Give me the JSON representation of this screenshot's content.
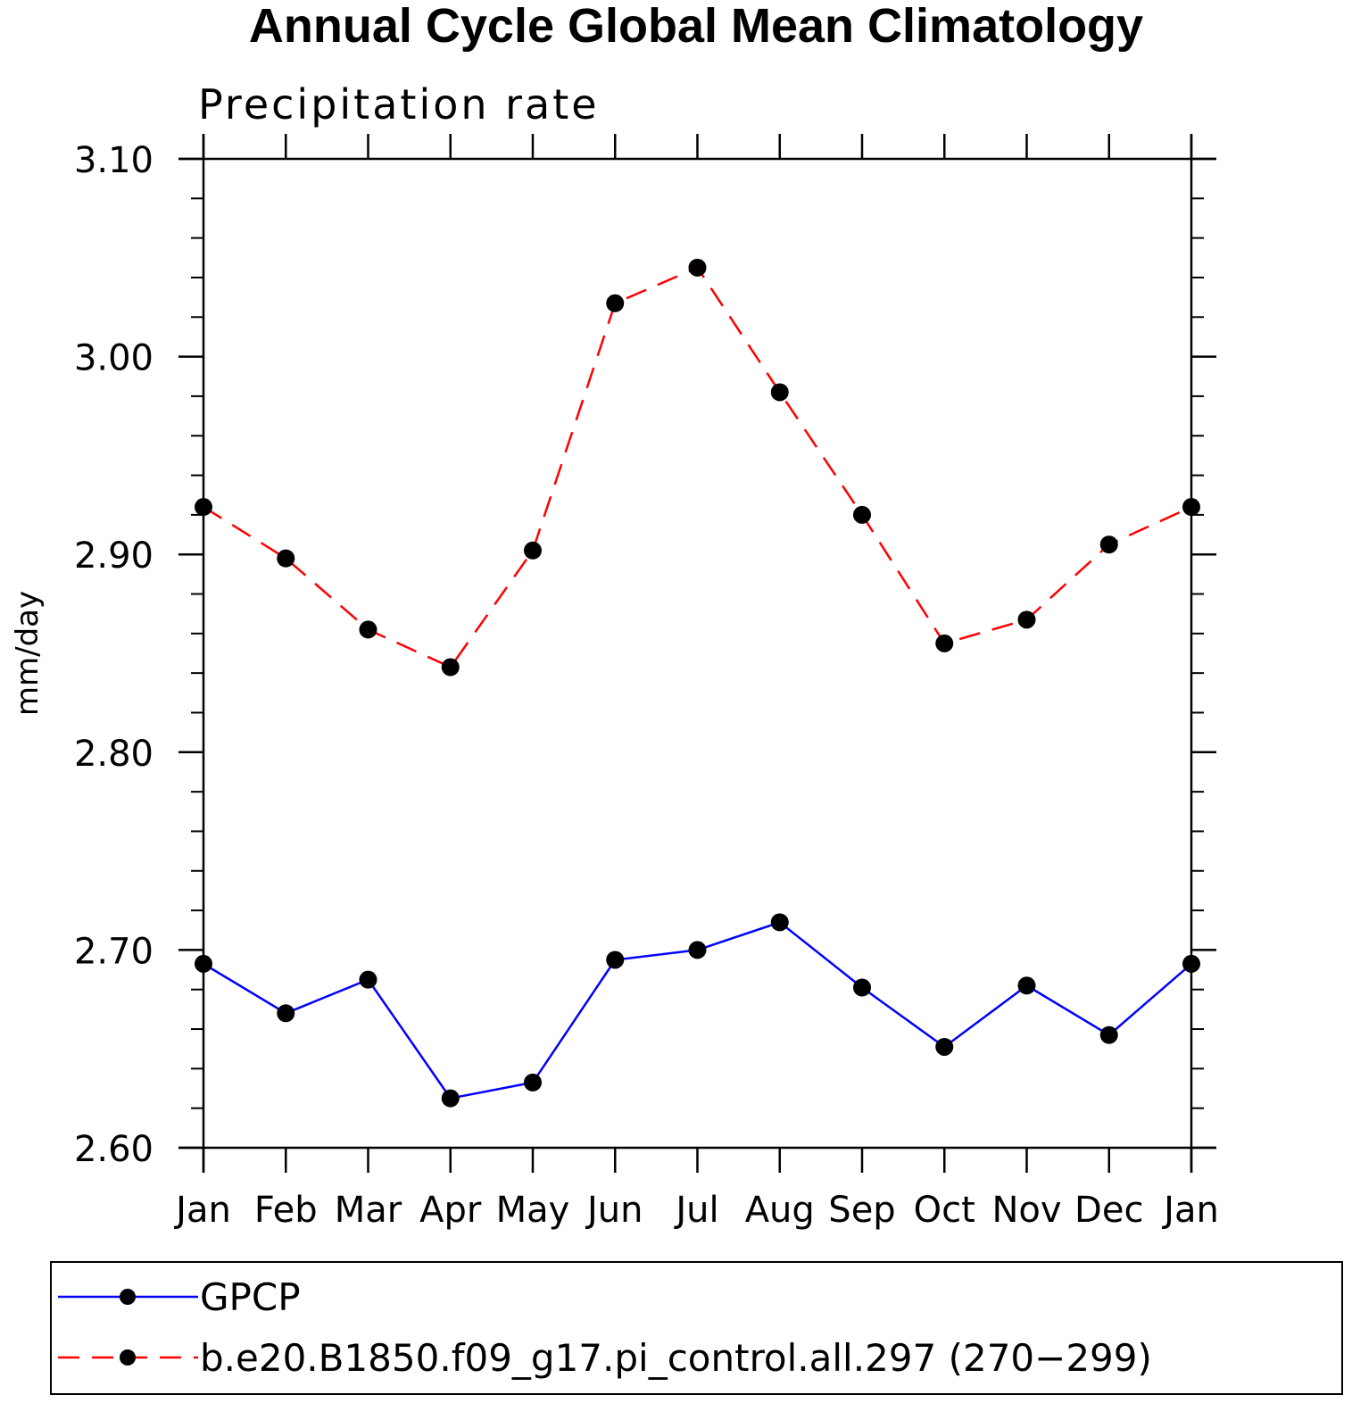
{
  "chart_data": {
    "type": "line",
    "title": "Annual Cycle Global Mean Climatology",
    "subtitle": "Precipitation rate",
    "ylabel": "mm/day",
    "xlabel": "",
    "categories": [
      "Jan",
      "Feb",
      "Mar",
      "Apr",
      "May",
      "Jun",
      "Jul",
      "Aug",
      "Sep",
      "Oct",
      "Nov",
      "Dec",
      "Jan"
    ],
    "ylim": [
      2.6,
      3.1
    ],
    "yticks": [
      "2.60",
      "2.70",
      "2.80",
      "2.90",
      "3.00",
      "3.10"
    ],
    "series": [
      {
        "name": "GPCP",
        "color": "#0000ff",
        "dash": "solid",
        "marker": "filled-circle",
        "values": [
          2.693,
          2.668,
          2.685,
          2.625,
          2.633,
          2.695,
          2.7,
          2.714,
          2.681,
          2.651,
          2.682,
          2.657,
          2.693
        ]
      },
      {
        "name": "b.e20.B1850.f09_g17.pi_control.all.297 (270−299)",
        "color": "#ff0000",
        "dash": "dashed",
        "marker": "filled-circle",
        "values": [
          2.924,
          2.898,
          2.862,
          2.843,
          2.902,
          3.027,
          3.045,
          2.982,
          2.92,
          2.855,
          2.867,
          2.905,
          2.924
        ]
      }
    ],
    "legend_position": "bottom",
    "grid": false
  }
}
